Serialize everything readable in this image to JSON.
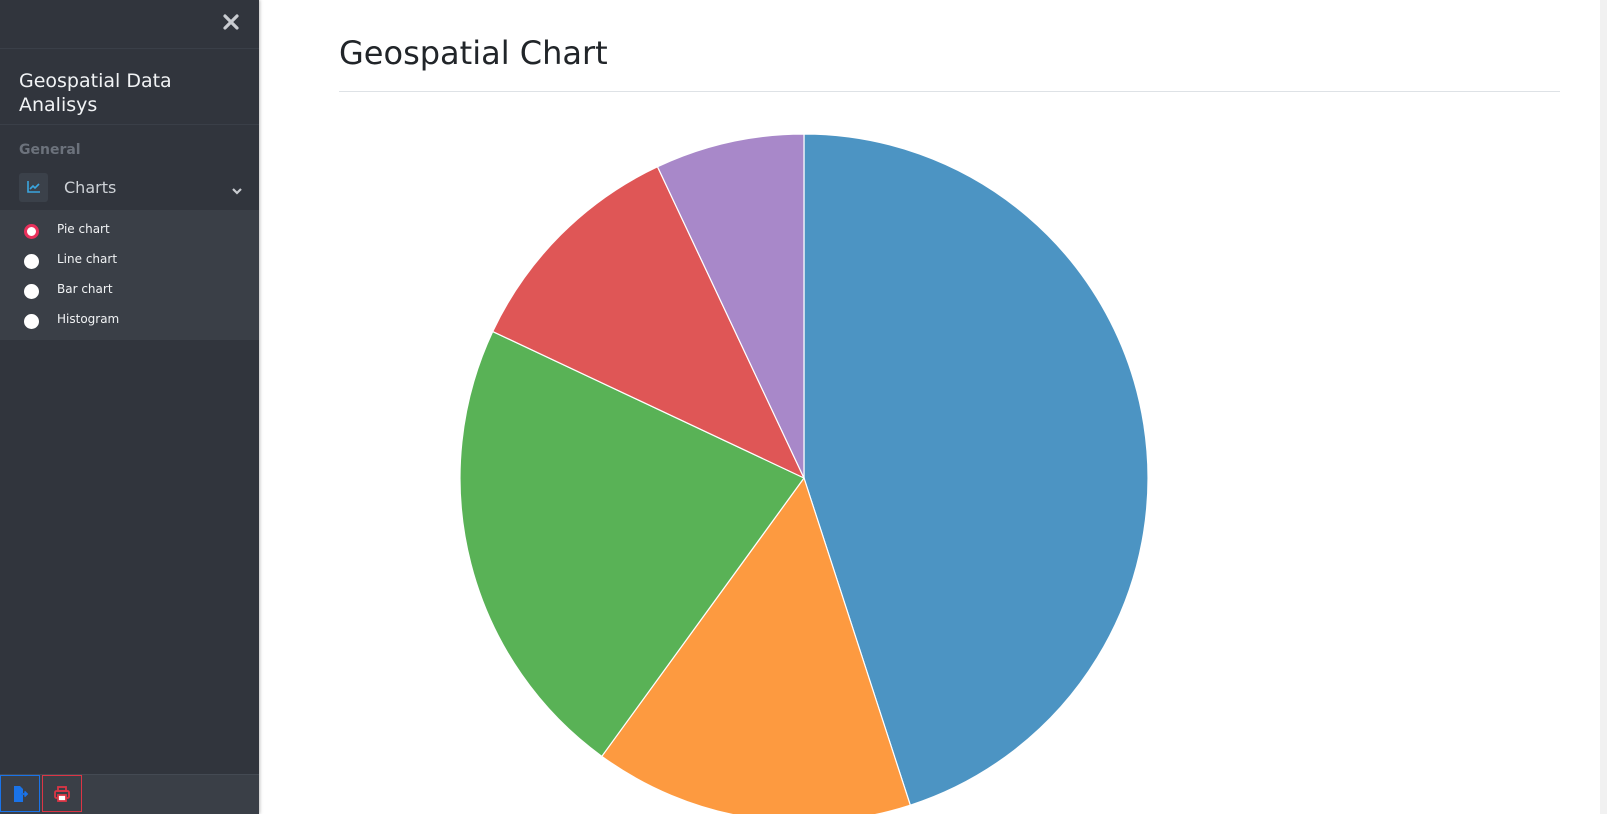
{
  "sidebar": {
    "brand": "Geospatial Data Analisys",
    "section": "General",
    "menu": {
      "label": "Charts",
      "icon": "chart-line-icon"
    },
    "items": [
      {
        "label": "Pie chart",
        "active": true
      },
      {
        "label": "Line chart",
        "active": false
      },
      {
        "label": "Bar chart",
        "active": false
      },
      {
        "label": "Histogram",
        "active": false
      }
    ],
    "footer": [
      {
        "icon": "file-export-icon",
        "color": "#1a73e8"
      },
      {
        "icon": "print-icon",
        "color": "#dc3545"
      }
    ]
  },
  "main": {
    "title": "Geospatial Chart"
  },
  "chart_data": {
    "type": "pie",
    "values": [
      45,
      15,
      22,
      11,
      7
    ],
    "colors": [
      "#4c94c3",
      "#fd9a40",
      "#59b256",
      "#df5656",
      "#a888c9"
    ]
  }
}
